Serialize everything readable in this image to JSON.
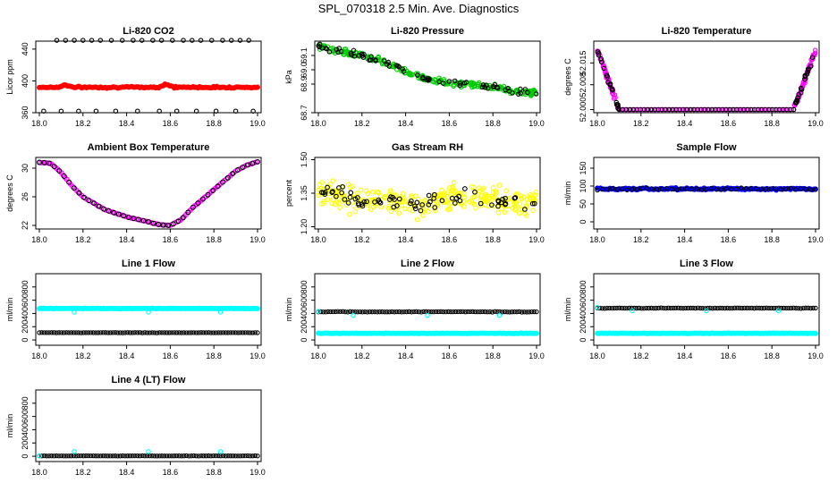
{
  "figure": {
    "title": "SPL_070318  2.5 Min. Ave. Diagnostics"
  },
  "colors": {
    "red": "#ff0000",
    "green": "#00cc00",
    "magenta": "#ff00ff",
    "yellow": "#ffff00",
    "blue": "#0000ff",
    "cyan": "#00ffff",
    "black": "#000000"
  },
  "chart_data": [
    {
      "id": "co2",
      "type": "scatter",
      "title": "Li-820 CO2",
      "ylabel": "Licor ppm",
      "xlabel": "",
      "xlim": [
        18.0,
        19.0
      ],
      "ylim": [
        360,
        450
      ],
      "xticks": [
        "18.0",
        "18.2",
        "18.4",
        "18.6",
        "18.8",
        "19.0"
      ],
      "yticks": [
        {
          "v": 360,
          "label": "360"
        },
        {
          "v": 400,
          "label": "400"
        },
        {
          "v": 440,
          "label": "440"
        }
      ],
      "series": [
        {
          "name": "co2",
          "color": "red",
          "kind": "dense",
          "base": 392,
          "noise": 1.5,
          "bumps": [
            [
              18.12,
              3
            ],
            [
              18.58,
              4
            ]
          ]
        },
        {
          "name": "co2 outliers",
          "color": "black",
          "kind": "scatter",
          "x": [
            18.08,
            18.12,
            18.16,
            18.2,
            18.24,
            18.28,
            18.33,
            18.38,
            18.43,
            18.47,
            18.52,
            18.56,
            18.61,
            18.66,
            18.7,
            18.74,
            18.79,
            18.84,
            18.88,
            18.92,
            18.96,
            18.02,
            18.1,
            18.18,
            18.26,
            18.35,
            18.45,
            18.55,
            18.63,
            18.72,
            18.81,
            18.9,
            18.98
          ],
          "y": [
            451,
            451,
            451,
            451,
            451,
            451,
            451,
            451,
            451,
            451,
            451,
            451,
            451,
            451,
            451,
            451,
            451,
            451,
            451,
            451,
            451,
            362,
            362,
            362,
            362,
            362,
            362,
            362,
            362,
            362,
            362,
            362,
            362
          ]
        }
      ]
    },
    {
      "id": "pressure",
      "type": "scatter",
      "title": "Li-820 Pressure",
      "ylabel": "kPa",
      "xlabel": "",
      "xlim": [
        18.0,
        19.0
      ],
      "ylim": [
        68.7,
        69.2
      ],
      "xticks": [
        "18.0",
        "18.2",
        "18.4",
        "18.6",
        "18.8",
        "19.0"
      ],
      "yticks": [
        {
          "v": 68.7,
          "label": "68.7"
        },
        {
          "v": 68.9,
          "label": "68.9"
        },
        {
          "v": 69.0,
          "label": "69.0"
        },
        {
          "v": 69.1,
          "label": "69.1"
        }
      ],
      "series": [
        {
          "name": "pressure",
          "color": "green",
          "kind": "band",
          "x": [
            18.0,
            18.1,
            18.2,
            18.3,
            18.4,
            18.5,
            18.6,
            18.7,
            18.8,
            18.9,
            19.0
          ],
          "y": [
            69.17,
            69.13,
            69.1,
            69.06,
            68.99,
            68.93,
            68.91,
            68.9,
            68.88,
            68.85,
            68.84
          ],
          "spread": 0.03
        },
        {
          "name": "pressure black",
          "color": "black",
          "kind": "band-sparse",
          "x": [
            18.0,
            18.1,
            18.2,
            18.3,
            18.4,
            18.5,
            18.6,
            18.7,
            18.8,
            18.9,
            19.0
          ],
          "y": [
            69.17,
            69.13,
            69.1,
            69.06,
            68.99,
            68.93,
            68.91,
            68.9,
            68.88,
            68.85,
            68.84
          ],
          "spread": 0.03
        }
      ]
    },
    {
      "id": "temp",
      "type": "scatter",
      "title": "Li-820 Temperature",
      "ylabel": "degrees C",
      "xlabel": "",
      "xlim": [
        18.0,
        19.0
      ],
      "ylim": [
        51.999,
        52.022
      ],
      "xticks": [
        "18.0",
        "18.2",
        "18.4",
        "18.6",
        "18.8",
        "19.0"
      ],
      "yticks": [
        {
          "v": 52.0,
          "label": "52.000"
        },
        {
          "v": 52.008,
          "label": "52.008"
        },
        {
          "v": 52.015,
          "label": "52.015"
        }
      ],
      "series": [
        {
          "name": "temp",
          "color": "magenta",
          "kind": "uflat",
          "base": 52.0,
          "edges": [
            [
              18.0,
              18.1
            ],
            [
              18.9,
              19.0
            ]
          ],
          "peak": 52.019
        },
        {
          "name": "temp black",
          "color": "black",
          "kind": "uflat-sparse",
          "base": 52.0,
          "edges": [
            [
              18.0,
              18.1
            ],
            [
              18.9,
              19.0
            ]
          ],
          "peak": 52.019
        }
      ]
    },
    {
      "id": "ambient",
      "type": "line",
      "title": "Ambient Box Temperature",
      "ylabel": "degrees C",
      "xlabel": "",
      "xlim": [
        18.0,
        19.0
      ],
      "ylim": [
        21.5,
        31.5
      ],
      "xticks": [
        "18.0",
        "18.2",
        "18.4",
        "18.6",
        "18.8",
        "19.0"
      ],
      "yticks": [
        {
          "v": 22,
          "label": "22"
        },
        {
          "v": 26,
          "label": "26"
        },
        {
          "v": 30,
          "label": "30"
        }
      ],
      "series": [
        {
          "name": "ambient",
          "color": "magenta",
          "kind": "curve",
          "x": [
            18.0,
            18.05,
            18.1,
            18.15,
            18.2,
            18.3,
            18.4,
            18.5,
            18.55,
            18.6,
            18.65,
            18.7,
            18.8,
            18.9,
            18.95,
            19.0
          ],
          "y": [
            30.8,
            30.7,
            29.4,
            27.5,
            26.0,
            24.2,
            23.2,
            22.5,
            22.1,
            22.0,
            22.8,
            24.4,
            27.0,
            29.6,
            30.4,
            30.9
          ]
        },
        {
          "name": "ambient black",
          "color": "black",
          "kind": "curve-sparse",
          "x": [
            18.0,
            18.05,
            18.1,
            18.15,
            18.2,
            18.3,
            18.4,
            18.5,
            18.55,
            18.6,
            18.65,
            18.7,
            18.8,
            18.9,
            18.95,
            19.0
          ],
          "y": [
            30.8,
            30.7,
            29.4,
            27.5,
            26.0,
            24.2,
            23.2,
            22.5,
            22.1,
            22.0,
            22.8,
            24.4,
            27.0,
            29.6,
            30.4,
            30.9
          ]
        }
      ]
    },
    {
      "id": "rh",
      "type": "scatter",
      "title": "Gas Stream RH",
      "ylabel": "percent",
      "xlabel": "",
      "xlim": [
        18.0,
        19.0
      ],
      "ylim": [
        1.19,
        1.51
      ],
      "xticks": [
        "18.0",
        "18.2",
        "18.4",
        "18.6",
        "18.8",
        "19.0"
      ],
      "yticks": [
        {
          "v": 1.2,
          "label": "1.20"
        },
        {
          "v": 1.35,
          "label": "1.35"
        },
        {
          "v": 1.5,
          "label": "1.50"
        }
      ],
      "series": [
        {
          "name": "rh",
          "color": "yellow",
          "kind": "cloud",
          "x": [
            18.0,
            18.1,
            18.2,
            18.3,
            18.4,
            18.5,
            18.6,
            18.7,
            18.8,
            18.9,
            19.0
          ],
          "y": [
            1.36,
            1.34,
            1.32,
            1.31,
            1.31,
            1.3,
            1.33,
            1.35,
            1.33,
            1.3,
            1.31
          ],
          "spread": 0.08
        },
        {
          "name": "rh black",
          "color": "black",
          "kind": "cloud-sparse",
          "x": [
            18.0,
            18.1,
            18.2,
            18.3,
            18.4,
            18.5,
            18.6,
            18.7,
            18.8,
            18.9,
            19.0
          ],
          "y": [
            1.36,
            1.34,
            1.32,
            1.31,
            1.31,
            1.3,
            1.33,
            1.35,
            1.33,
            1.3,
            1.31
          ],
          "spread": 0.06
        }
      ]
    },
    {
      "id": "sample",
      "type": "scatter",
      "title": "Sample Flow",
      "ylabel": "ml/min",
      "xlabel": "",
      "xlim": [
        18.0,
        19.0
      ],
      "ylim": [
        -20,
        180
      ],
      "xticks": [
        "18.0",
        "18.2",
        "18.4",
        "18.6",
        "18.8",
        "19.0"
      ],
      "yticks": [
        {
          "v": 0,
          "label": "0"
        },
        {
          "v": 50,
          "label": "50"
        },
        {
          "v": 100,
          "label": "100"
        },
        {
          "v": 150,
          "label": "150"
        }
      ],
      "series": [
        {
          "name": "sample",
          "color": "blue",
          "kind": "dense",
          "base": 92,
          "noise": 4,
          "bumps": []
        },
        {
          "name": "sample black",
          "color": "black",
          "kind": "dense-sparse",
          "base": 92,
          "noise": 4
        }
      ]
    },
    {
      "id": "line1",
      "type": "scatter",
      "title": "Line 1 Flow",
      "ylabel": "ml/min",
      "xlabel": "",
      "xlim": [
        18.0,
        19.0
      ],
      "ylim": [
        -80,
        1000
      ],
      "xticks": [
        "18.0",
        "18.2",
        "18.4",
        "18.6",
        "18.8",
        "19.0"
      ],
      "yticks": [
        {
          "v": 0,
          "label": "0"
        },
        {
          "v": 200,
          "label": "200"
        },
        {
          "v": 400,
          "label": "400"
        },
        {
          "v": 600,
          "label": "600"
        },
        {
          "v": 800,
          "label": "800"
        }
      ],
      "series": [
        {
          "name": "line1 high",
          "color": "cyan",
          "kind": "dense",
          "base": 475,
          "noise": 6,
          "bumps": []
        },
        {
          "name": "line1 low",
          "color": "black",
          "kind": "ring",
          "base": 110,
          "noise": 3
        },
        {
          "name": "line1 dips",
          "color": "cyan",
          "kind": "scatter",
          "x": [
            18.16,
            18.5,
            18.83
          ],
          "y": [
            420,
            420,
            420
          ]
        }
      ]
    },
    {
      "id": "line2",
      "type": "scatter",
      "title": "Line 2 Flow",
      "ylabel": "ml/min",
      "xlabel": "",
      "xlim": [
        18.0,
        19.0
      ],
      "ylim": [
        -80,
        1000
      ],
      "xticks": [
        "18.0",
        "18.2",
        "18.4",
        "18.6",
        "18.8",
        "19.0"
      ],
      "yticks": [
        {
          "v": 0,
          "label": "0"
        },
        {
          "v": 200,
          "label": "200"
        },
        {
          "v": 400,
          "label": "400"
        },
        {
          "v": 600,
          "label": "600"
        },
        {
          "v": 800,
          "label": "800"
        }
      ],
      "series": [
        {
          "name": "line2 high",
          "color": "black",
          "kind": "ring",
          "base": 425,
          "noise": 6
        },
        {
          "name": "line2 low",
          "color": "cyan",
          "kind": "dense",
          "base": 100,
          "noise": 5,
          "bumps": []
        },
        {
          "name": "line2 dips",
          "color": "cyan",
          "kind": "scatter",
          "x": [
            18.0,
            18.16,
            18.5,
            18.83
          ],
          "y": [
            430,
            370,
            370,
            370
          ]
        }
      ]
    },
    {
      "id": "line3",
      "type": "scatter",
      "title": "Line 3 Flow",
      "ylabel": "ml/min",
      "xlabel": "",
      "xlim": [
        18.0,
        19.0
      ],
      "ylim": [
        -80,
        1000
      ],
      "xticks": [
        "18.0",
        "18.2",
        "18.4",
        "18.6",
        "18.8",
        "19.0"
      ],
      "yticks": [
        {
          "v": 0,
          "label": "0"
        },
        {
          "v": 200,
          "label": "200"
        },
        {
          "v": 400,
          "label": "400"
        },
        {
          "v": 600,
          "label": "600"
        },
        {
          "v": 800,
          "label": "800"
        }
      ],
      "series": [
        {
          "name": "line3 high",
          "color": "black",
          "kind": "ring",
          "base": 480,
          "noise": 6
        },
        {
          "name": "line3 low",
          "color": "cyan",
          "kind": "dense",
          "base": 100,
          "noise": 5,
          "bumps": []
        },
        {
          "name": "line3 dips",
          "color": "cyan",
          "kind": "scatter",
          "x": [
            18.0,
            18.16,
            18.5,
            18.83
          ],
          "y": [
            490,
            440,
            440,
            440
          ]
        }
      ]
    },
    {
      "id": "line4",
      "type": "scatter",
      "title": "Line 4 (LT) Flow",
      "ylabel": "ml/min",
      "xlabel": "",
      "xlim": [
        18.0,
        19.0
      ],
      "ylim": [
        -80,
        1000
      ],
      "xticks": [
        "18.0",
        "18.2",
        "18.4",
        "18.6",
        "18.8",
        "19.0"
      ],
      "yticks": [
        {
          "v": 0,
          "label": "0"
        },
        {
          "v": 200,
          "label": "200"
        },
        {
          "v": 400,
          "label": "400"
        },
        {
          "v": 600,
          "label": "600"
        },
        {
          "v": 800,
          "label": "800"
        }
      ],
      "series": [
        {
          "name": "line4",
          "color": "black",
          "kind": "ring",
          "base": 5,
          "noise": 3
        },
        {
          "name": "line4 cyan",
          "color": "cyan",
          "kind": "scatter",
          "x": [
            18.0,
            18.16,
            18.5,
            18.83
          ],
          "y": [
            5,
            70,
            70,
            70
          ]
        }
      ]
    }
  ]
}
